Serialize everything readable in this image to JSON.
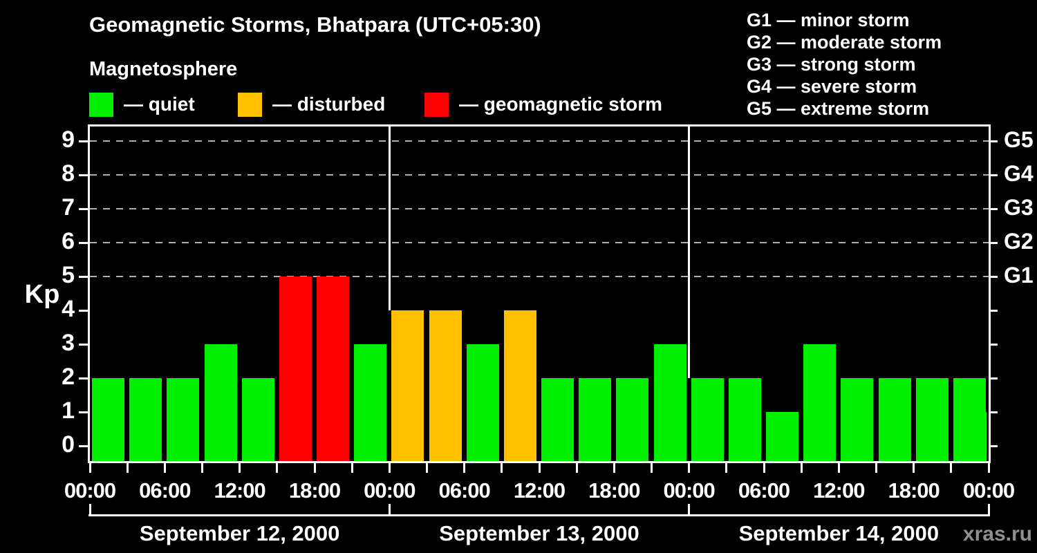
{
  "title": "Geomagnetic Storms, Bhatpara (UTC+05:30)",
  "subtitle": "Magnetosphere",
  "legend": {
    "items": [
      {
        "label": "— quiet",
        "color": "#00f000"
      },
      {
        "label": "— disturbed",
        "color": "#ffc000"
      },
      {
        "label": "— geomagnetic storm",
        "color": "#ff0000"
      }
    ]
  },
  "g_legend": [
    "G1 — minor storm",
    "G2 — moderate storm",
    "G3 — strong storm",
    "G4 — severe storm",
    "G5 — extreme storm"
  ],
  "watermark": "xras.ru",
  "chart_data": {
    "type": "bar",
    "title": "Geomagnetic Storms, Bhatpara (UTC+05:30)",
    "ylabel": "Kp",
    "ylim": [
      0,
      9
    ],
    "yticks": [
      0,
      1,
      2,
      3,
      4,
      5,
      6,
      7,
      8,
      9
    ],
    "grid_dashed_at_kp": [
      5,
      6,
      7,
      8,
      9
    ],
    "right_axis_labels": [
      {
        "kp": 5,
        "label": "G1"
      },
      {
        "kp": 6,
        "label": "G2"
      },
      {
        "kp": 7,
        "label": "G3"
      },
      {
        "kp": 8,
        "label": "G4"
      },
      {
        "kp": 9,
        "label": "G5"
      }
    ],
    "bar_interval_hours": 3,
    "x_tick_label_cycle": [
      "00:00",
      "06:00",
      "12:00",
      "18:00"
    ],
    "days": [
      {
        "date": "September 12, 2000",
        "kp": [
          2,
          2,
          2,
          3,
          2,
          5,
          5,
          3
        ]
      },
      {
        "date": "September 13, 2000",
        "kp": [
          4,
          4,
          3,
          4,
          2,
          2,
          2,
          3
        ]
      },
      {
        "date": "September 14, 2000",
        "kp": [
          2,
          2,
          1,
          3,
          2,
          2,
          2,
          2
        ]
      }
    ],
    "partial_next_bar_kp": 1,
    "color_rules": {
      "quiet_kp_max": 3,
      "disturbed_kp": 4,
      "storm_kp_min": 5
    },
    "colors": {
      "quiet": "#00f000",
      "disturbed": "#ffc000",
      "storm": "#ff0000",
      "grid": "#b0b0b0",
      "axis": "#ffffff",
      "watermark": "#8f8f8f"
    },
    "legend_position": "top",
    "grid": "dashed horizontal at G1–G5 levels only"
  }
}
